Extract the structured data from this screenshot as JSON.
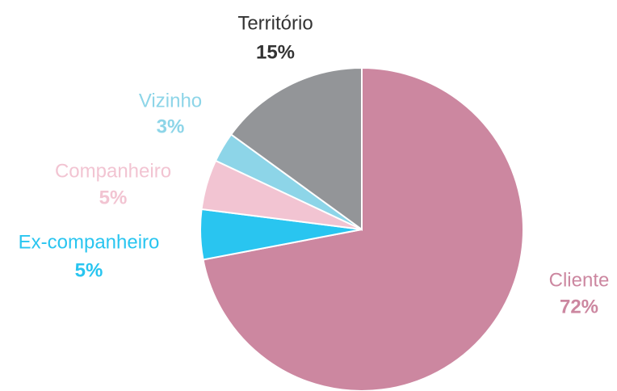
{
  "chart_data": {
    "type": "pie",
    "categories": [
      "Cliente",
      "Ex-companheiro",
      "Companheiro",
      "Vizinho",
      "Território"
    ],
    "values": [
      72,
      5,
      5,
      3,
      15
    ],
    "value_labels": [
      "72%",
      "5%",
      "5%",
      "3%",
      "15%"
    ],
    "colors": [
      "#cc87a0",
      "#29c5f0",
      "#f2c4d2",
      "#8dd5e8",
      "#939598"
    ],
    "label_colors": [
      "#cc87a0",
      "#29c5f0",
      "#f2c4d2",
      "#8dd5e8",
      "#333333"
    ]
  }
}
